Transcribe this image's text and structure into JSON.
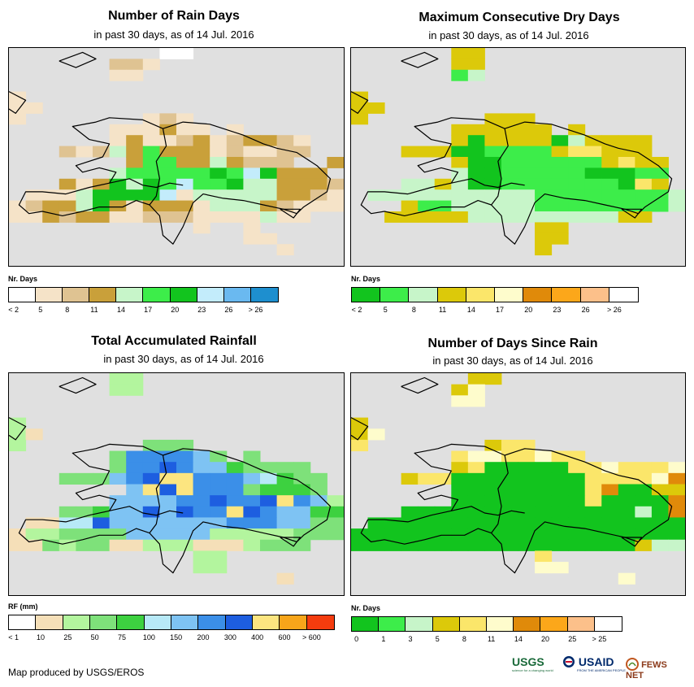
{
  "credit": "Map produced by USGS/EROS",
  "logos": {
    "usgs": "USGS",
    "usgs_tagline": "science for a changing world",
    "usaid": "USAID",
    "usaid_tagline": "FROM THE AMERICAN PEOPLE",
    "fewsnet": "FEWS NET"
  },
  "chart_data": [
    {
      "type": "heatmap",
      "title": "Number of Rain Days",
      "subtitle": "in past 30 days, as of 14 Jul. 2016",
      "legend_title": "Nr. Days",
      "legend_labels": [
        "< 2",
        "5",
        "8",
        "11",
        "14",
        "17",
        "20",
        "23",
        "26",
        "> 26"
      ],
      "legend_colors": [
        "#ffffff",
        "#f5e3c8",
        "#dfc392",
        "#c9a03a",
        "#c7f5c9",
        "#3ded4a",
        "#12c41e",
        "#c3ecfb",
        "#6ab9f0",
        "#1e8fcf"
      ],
      "cells": [
        ".........00.........",
        "......221...........",
        "......11............",
        "....................",
        "1...................",
        "11..................",
        "1.......121.........",
        "......111311.1......",
        "......131123123321..",
        "...212435333121122..",
        ".......3553343222..3..",
        "......4555556576333.....",
        "...313646575564433321...",
        ".1114666671444443321......",
        "12334631333144432111......",
        "113233112221111411...4.1...",
        "...........1..1.....",
        "..............11....",
        "................1...",
        "...................."
      ]
    },
    {
      "type": "heatmap",
      "title": "Maximum Consecutive Dry Days",
      "subtitle": "in past 30 days, as of 14 Jul. 2016",
      "legend_title": "Nr. Days",
      "legend_labels": [
        "< 2",
        "5",
        "8",
        "11",
        "14",
        "17",
        "20",
        "23",
        "26",
        "> 26"
      ],
      "legend_colors": [
        "#12c41e",
        "#3ded4a",
        "#c7f5c9",
        "#dcc90a",
        "#fbe66a",
        "#fefccc",
        "#e08a0a",
        "#fca71a",
        "#fcc08a",
        "#ffffff"
      ],
      "cells": [
        "......33............",
        "......33............",
        "......12............",
        "....................",
        "3...................",
        "33..................",
        "3.......333.........",
        "......333333.3......",
        "......303333023333..",
        "...333001111344333..",
        "......3001111113433...",
        "......2001111100011.....",
        "...2232001111111043.....",
        ".2222222222111111112......",
        "...31122222111111112233...",
        "..3333322222222233...3.3...",
        "...........33.......",
        "...........33.......",
        "...........3........",
        "...................."
      ]
    },
    {
      "type": "heatmap",
      "title": "Total Accumulated Rainfall",
      "subtitle": "in past 30 days, as of 14 Jul. 2016",
      "legend_title": "RF (mm)",
      "legend_labels": [
        "< 1",
        "10",
        "25",
        "50",
        "75",
        "100",
        "150",
        "200",
        "300",
        "400",
        "600",
        "> 600"
      ],
      "legend_colors": [
        "#ffffff",
        "#f5dfb8",
        "#b3f59e",
        "#7ee17a",
        "#3dd140",
        "#b7e9f7",
        "#7ec3f3",
        "#3b8fe8",
        "#1d5ee0",
        "#fce580",
        "#f7a51a",
        "#f43c0e"
      ],
      "cells": [
        "......22............",
        "......22............",
        "....................",
        "....................",
        "2...................",
        "21..................",
        "2.......333.........",
        "......3777763.3.....",
        "......377876643333..",
        "...3336789977765433.",
        ".......698977734443...",
        "......66667787789762....",
        "...334668687798766443...",
        ".1155866666667776633.....",
        "12233336666622222333......",
        "113233112221112333...3.3..",
        "...........22.......",
        "...........22.......",
        "................1...",
        "...................."
      ]
    },
    {
      "type": "heatmap",
      "title": "Number of Days Since Rain",
      "subtitle": "in past 30 days, as of 14 Jul. 2016",
      "legend_title": "Nr. Days",
      "legend_labels": [
        "0",
        "1",
        "3",
        "5",
        "8",
        "11",
        "14",
        "20",
        "25",
        "> 25"
      ],
      "legend_colors": [
        "#12c41e",
        "#3ded4a",
        "#c7f5c9",
        "#dcc90a",
        "#fbe66a",
        "#fefccc",
        "#e08a0a",
        "#fca71a",
        "#fcc08a",
        "#ffffff"
      ],
      "cells": [
        ".......33...........",
        "......35............",
        "......55............",
        "....................",
        "3...................",
        "35..................",
        "4.......344.........",
        "......45544544......",
        "......34000004454445",
        "...34400000000444456..",
        "......000000004600333...",
        "......000000004000063...",
        "...000000000000002066.....",
        ".000000000000000000066....",
        "00000000000000000000066....",
        "000000000000000003220003...",
        "...........4........",
        "...........55.......",
        "................5...",
        "...................."
      ]
    }
  ]
}
